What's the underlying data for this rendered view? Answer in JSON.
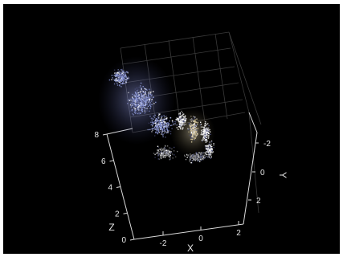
{
  "chart_data": {
    "type": "scatter",
    "subtype": "3d point cloud",
    "title": "",
    "background": "#000000",
    "axis_color": "#d9d9d9",
    "grid": true,
    "xlabel": "X",
    "ylabel": "Y",
    "zlabel": "Z",
    "x_ticks": [
      "-2",
      "0",
      "2"
    ],
    "y_ticks": [
      "-2",
      "0",
      "2"
    ],
    "z_ticks": [
      "0",
      "2",
      "4",
      "6",
      "8"
    ],
    "xlim": [
      -3,
      3
    ],
    "ylim": [
      -3,
      3
    ],
    "zlim": [
      0,
      8
    ],
    "point_colors": [
      "#8e9ad8",
      "#d2c49a",
      "#ffffff",
      "#8a8a8a"
    ]
  }
}
